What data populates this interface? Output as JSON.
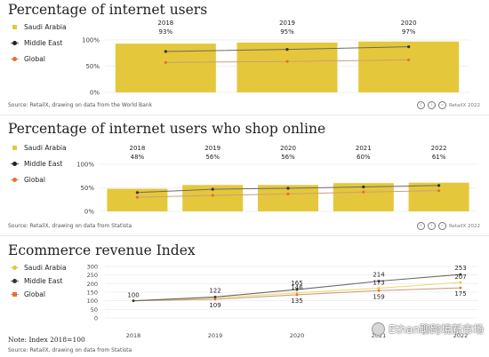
{
  "colors": {
    "saudi": "#e5c73b",
    "middle_east": "#333333",
    "global": "#e8702e",
    "saudi_line": "#ecd879",
    "middle_east_line": "#6a6a6a",
    "global_line": "#c9a078"
  },
  "panels": [
    {
      "title": "Percentage of internet users",
      "legend": [
        "Saudi Arabia",
        "Middle East",
        "Global"
      ],
      "source": "Source: RetailX, drawing on data from the World Bank",
      "credit": "RetailX 2022"
    },
    {
      "title": "Percentage of internet users who shop online",
      "legend": [
        "Saudi Arabia",
        "Middle East",
        "Global"
      ],
      "source": "Source: RetailX, drawing on data from Statista",
      "credit": "RetailX 2022"
    },
    {
      "title": "Ecommerce revenue Index",
      "legend": [
        "Saudi Arabia",
        "Middle East",
        "Global"
      ],
      "source": "Source: RetailX, drawing on data from Statista",
      "note": "Note: Index 2018=100"
    }
  ],
  "watermark": "Ethan聊跨境新市场",
  "chart_data": [
    {
      "type": "bar",
      "title": "Percentage of internet users",
      "categories": [
        "2018",
        "2019",
        "2020"
      ],
      "value_labels": [
        "93%",
        "95%",
        "97%"
      ],
      "series": [
        {
          "name": "Saudi Arabia",
          "kind": "bar",
          "values": [
            93,
            95,
            97
          ]
        },
        {
          "name": "Middle East",
          "kind": "line",
          "values": [
            78,
            82,
            87
          ]
        },
        {
          "name": "Global",
          "kind": "line",
          "values": [
            57,
            59,
            62
          ]
        }
      ],
      "yticks": [
        "0%",
        "50%",
        "100%"
      ],
      "ylim": [
        0,
        100
      ],
      "grid": true
    },
    {
      "type": "bar",
      "title": "Percentage of internet users who shop online",
      "categories": [
        "2018",
        "2019",
        "2020",
        "2021",
        "2022"
      ],
      "value_labels": [
        "48%",
        "56%",
        "56%",
        "60%",
        "61%"
      ],
      "series": [
        {
          "name": "Saudi Arabia",
          "kind": "bar",
          "values": [
            48,
            56,
            56,
            60,
            61
          ]
        },
        {
          "name": "Middle East",
          "kind": "line",
          "values": [
            40,
            47,
            49,
            52,
            55
          ]
        },
        {
          "name": "Global",
          "kind": "line",
          "values": [
            30,
            34,
            37,
            41,
            44
          ]
        }
      ],
      "yticks": [
        "0%",
        "50%",
        "100%"
      ],
      "ylim": [
        0,
        100
      ],
      "grid": true
    },
    {
      "type": "line",
      "title": "Ecommerce revenue Index",
      "categories": [
        "2018",
        "2019",
        "2020",
        "2021",
        "2022"
      ],
      "series": [
        {
          "name": "Saudi Arabia",
          "values": [
            100,
            118,
            146,
            173,
            207
          ]
        },
        {
          "name": "Middle East",
          "values": [
            100,
            122,
            165,
            214,
            253
          ]
        },
        {
          "name": "Global",
          "values": [
            100,
            109,
            135,
            159,
            175
          ]
        }
      ],
      "data_labels": [
        {
          "series": "Middle East",
          "x": "2018",
          "label": "100"
        },
        {
          "series": "Middle East",
          "x": "2019",
          "label": "122"
        },
        {
          "series": "Global",
          "x": "2019",
          "label": "109"
        },
        {
          "series": "Middle East",
          "x": "2020",
          "label": "165"
        },
        {
          "series": "Saudi Arabia",
          "x": "2020",
          "label": "146"
        },
        {
          "series": "Global",
          "x": "2020",
          "label": "135"
        },
        {
          "series": "Middle East",
          "x": "2021",
          "label": "214"
        },
        {
          "series": "Saudi Arabia",
          "x": "2021",
          "label": "173"
        },
        {
          "series": "Global",
          "x": "2021",
          "label": "159"
        },
        {
          "series": "Middle East",
          "x": "2022",
          "label": "253"
        },
        {
          "series": "Saudi Arabia",
          "x": "2022",
          "label": "207"
        },
        {
          "series": "Global",
          "x": "2022",
          "label": "175"
        }
      ],
      "yticks": [
        "0",
        "50",
        "100",
        "150",
        "200",
        "250",
        "300"
      ],
      "ylim": [
        0,
        300
      ],
      "grid": true
    }
  ]
}
